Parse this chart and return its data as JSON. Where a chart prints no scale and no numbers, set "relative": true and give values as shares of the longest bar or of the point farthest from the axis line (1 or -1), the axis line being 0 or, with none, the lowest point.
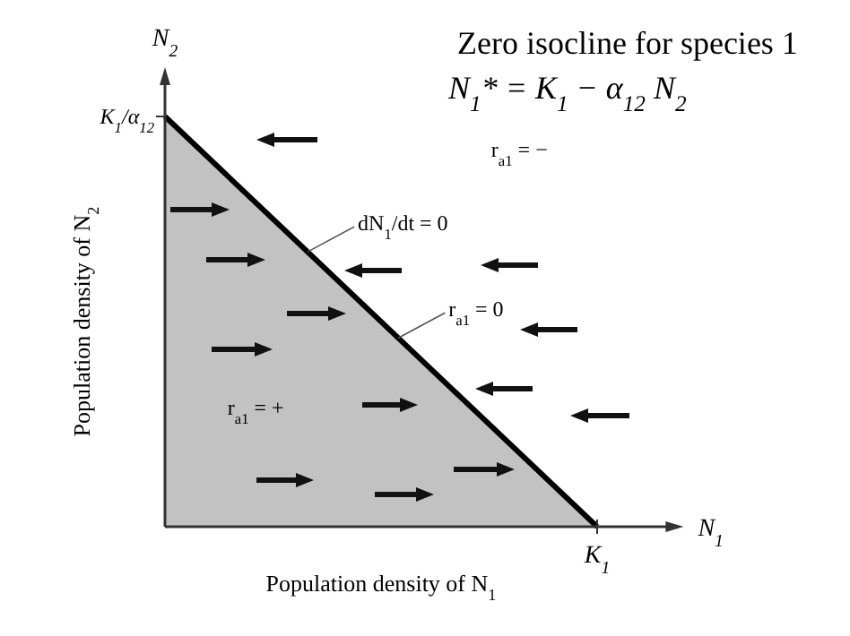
{
  "chart_data": {
    "type": "area",
    "title": "Zero isocline for species 1",
    "subtitle": "N$_{1}$* = K$_{1}$ − α$_{12}$ N$_{2}$",
    "xlabel": "Population density of N$_{1}$",
    "ylabel": "Population density of N$_{2}$",
    "relative": true,
    "categories": [
      null,
      null
    ],
    "series": [
      {
        "color": "#c2c2c2",
        "values": [
          1,
          0
        ]
      }
    ],
    "annotations": [
      "N$_{1}$",
      "N$_{2}$",
      "K$_{1}$",
      "K$_{1}$/α$_{12}$",
      "dN$_{1}$/dt = 0",
      "r$_{a1}$ = 0",
      "r$_{a1}$ = −",
      "r$_{a1}$ = +"
    ]
  }
}
